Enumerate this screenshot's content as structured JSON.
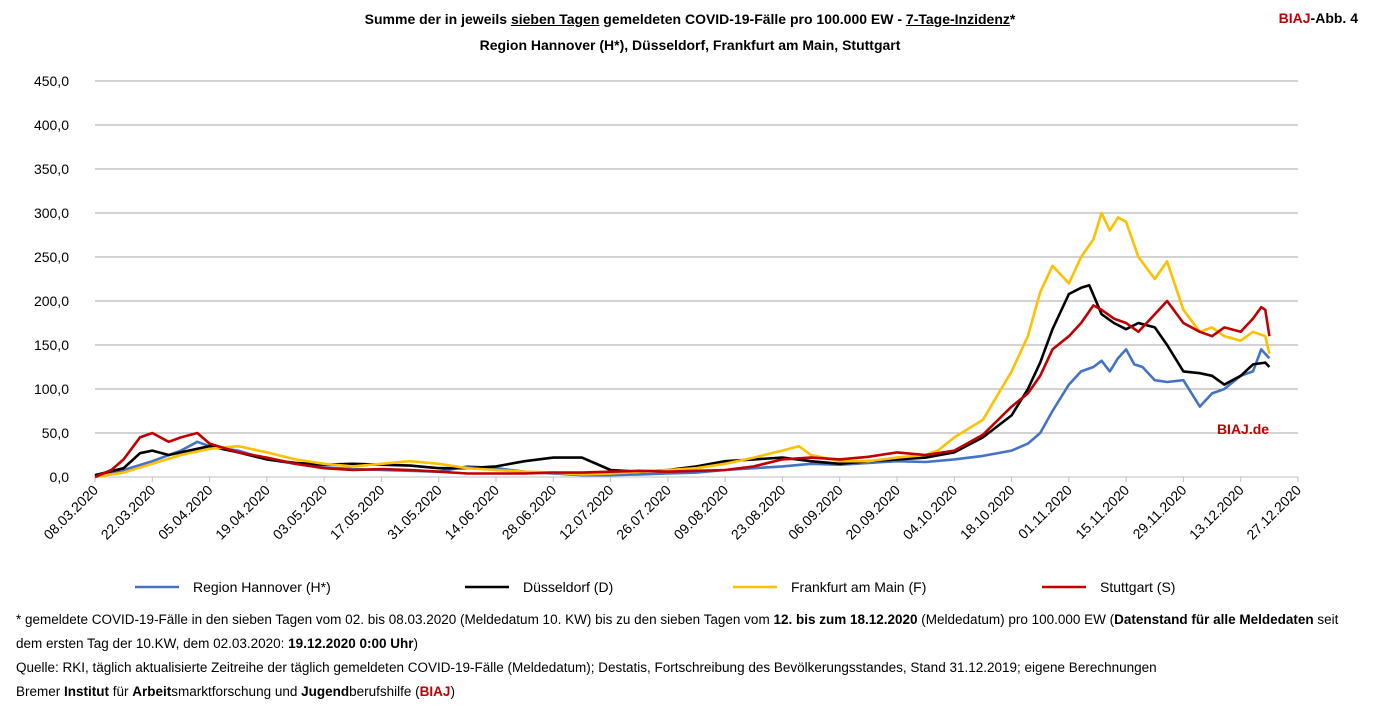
{
  "header": {
    "title_line1": {
      "pre": "Summe der in jeweils ",
      "underlined1": "sieben Tagen",
      "mid": " gemeldeten COVID-19-Fälle pro 100.000 EW - ",
      "underlined2": "7-Tage-Inzidenz",
      "post": "*"
    },
    "title_line2": "Region Hannover (H*), Düsseldorf, Frankfurt am Main, Stuttgart",
    "figure_label_brand": "BIAJ",
    "figure_label_rest": "-Abb. 4"
  },
  "watermark": "BIAJ.de",
  "footnotes": {
    "line1_a": "* gemeldete COVID-19-Fälle in den sieben Tagen vom 02. bis 08.03.2020 (Meldedatum 10. KW) bis zu den sieben Tagen vom ",
    "line1_b": "12. bis zum 18.12.2020",
    "line1_c": " (Meldedatum) pro 100.000 EW (",
    "line1_d": "Datenstand für alle Meldedaten",
    "line1_e": " seit dem ersten Tag der 10.KW, dem 02.03.2020: ",
    "line1_f": "19.12.2020 0:00 Uhr",
    "line1_g": ")",
    "source": "Quelle: RKI, täglich aktualisierte Zeitreihe der täglich gemeldeten COVID-19-Fälle (Meldedatum); Destatis, Fortschreibung des Bevölkerungsstandes, Stand 31.12.2019; eigene Berechnungen",
    "credit_1": "Bremer ",
    "credit_2": "Institut",
    "credit_3": " für ",
    "credit_4": "Arbeit",
    "credit_5": "smarktforschung und ",
    "credit_6": "Jugend",
    "credit_7": "berufshilfe (",
    "credit_8": "BIAJ",
    "credit_9": ")"
  },
  "chart_data": {
    "type": "line",
    "ylim": [
      0,
      450
    ],
    "y_ticks": [
      "0,0",
      "50,0",
      "100,0",
      "150,0",
      "200,0",
      "250,0",
      "300,0",
      "350,0",
      "400,0",
      "450,0"
    ],
    "x_range": [
      "08.03.2020",
      "27.12.2020"
    ],
    "x_ticks": [
      "08.03.2020",
      "22.03.2020",
      "05.04.2020",
      "19.04.2020",
      "03.05.2020",
      "17.05.2020",
      "31.05.2020",
      "14.06.2020",
      "28.06.2020",
      "12.07.2020",
      "26.07.2020",
      "09.08.2020",
      "23.08.2020",
      "06.09.2020",
      "20.09.2020",
      "04.10.2020",
      "18.10.2020",
      "01.11.2020",
      "15.11.2020",
      "29.11.2020",
      "13.12.2020",
      "27.12.2020"
    ],
    "grid": true,
    "legend_position": "bottom",
    "series": [
      {
        "name": "Region Hannover (H*)",
        "color": "#4472c4",
        "points": [
          [
            "08.03.2020",
            1
          ],
          [
            "15.03.2020",
            8
          ],
          [
            "22.03.2020",
            18
          ],
          [
            "29.03.2020",
            30
          ],
          [
            "02.04.2020",
            40
          ],
          [
            "05.04.2020",
            35
          ],
          [
            "12.04.2020",
            30
          ],
          [
            "19.04.2020",
            20
          ],
          [
            "26.04.2020",
            15
          ],
          [
            "03.05.2020",
            11
          ],
          [
            "10.05.2020",
            9
          ],
          [
            "17.05.2020",
            8
          ],
          [
            "24.05.2020",
            7
          ],
          [
            "31.05.2020",
            6
          ],
          [
            "07.06.2020",
            12
          ],
          [
            "14.06.2020",
            10
          ],
          [
            "21.06.2020",
            6
          ],
          [
            "28.06.2020",
            4
          ],
          [
            "05.07.2020",
            2
          ],
          [
            "12.07.2020",
            2
          ],
          [
            "19.07.2020",
            3
          ],
          [
            "26.07.2020",
            4
          ],
          [
            "02.08.2020",
            5
          ],
          [
            "09.08.2020",
            8
          ],
          [
            "16.08.2020",
            10
          ],
          [
            "23.08.2020",
            12
          ],
          [
            "30.08.2020",
            15
          ],
          [
            "06.09.2020",
            14
          ],
          [
            "13.09.2020",
            16
          ],
          [
            "20.09.2020",
            18
          ],
          [
            "27.09.2020",
            17
          ],
          [
            "04.10.2020",
            20
          ],
          [
            "11.10.2020",
            24
          ],
          [
            "18.10.2020",
            30
          ],
          [
            "22.10.2020",
            38
          ],
          [
            "25.10.2020",
            50
          ],
          [
            "28.10.2020",
            75
          ],
          [
            "01.11.2020",
            105
          ],
          [
            "04.11.2020",
            120
          ],
          [
            "07.11.2020",
            125
          ],
          [
            "09.11.2020",
            132
          ],
          [
            "11.11.2020",
            120
          ],
          [
            "13.11.2020",
            135
          ],
          [
            "15.11.2020",
            145
          ],
          [
            "17.11.2020",
            128
          ],
          [
            "19.11.2020",
            125
          ],
          [
            "22.11.2020",
            110
          ],
          [
            "25.11.2020",
            108
          ],
          [
            "29.11.2020",
            110
          ],
          [
            "03.12.2020",
            80
          ],
          [
            "06.12.2020",
            95
          ],
          [
            "09.12.2020",
            100
          ],
          [
            "13.12.2020",
            115
          ],
          [
            "16.12.2020",
            120
          ],
          [
            "18.12.2020",
            145
          ],
          [
            "20.12.2020",
            135
          ]
        ]
      },
      {
        "name": "Düsseldorf (D)",
        "color": "#000000",
        "points": [
          [
            "08.03.2020",
            2
          ],
          [
            "15.03.2020",
            10
          ],
          [
            "19.03.2020",
            27
          ],
          [
            "22.03.2020",
            30
          ],
          [
            "26.03.2020",
            25
          ],
          [
            "02.04.2020",
            32
          ],
          [
            "05.04.2020",
            35
          ],
          [
            "12.04.2020",
            28
          ],
          [
            "19.04.2020",
            20
          ],
          [
            "26.04.2020",
            16
          ],
          [
            "03.05.2020",
            14
          ],
          [
            "10.05.2020",
            15
          ],
          [
            "17.05.2020",
            14
          ],
          [
            "24.05.2020",
            13
          ],
          [
            "31.05.2020",
            10
          ],
          [
            "07.06.2020",
            10
          ],
          [
            "14.06.2020",
            12
          ],
          [
            "21.06.2020",
            18
          ],
          [
            "28.06.2020",
            22
          ],
          [
            "05.07.2020",
            22
          ],
          [
            "12.07.2020",
            8
          ],
          [
            "19.07.2020",
            6
          ],
          [
            "26.07.2020",
            8
          ],
          [
            "02.08.2020",
            12
          ],
          [
            "09.08.2020",
            18
          ],
          [
            "16.08.2020",
            20
          ],
          [
            "23.08.2020",
            22
          ],
          [
            "30.08.2020",
            18
          ],
          [
            "06.09.2020",
            15
          ],
          [
            "13.09.2020",
            18
          ],
          [
            "20.09.2020",
            20
          ],
          [
            "27.09.2020",
            22
          ],
          [
            "04.10.2020",
            28
          ],
          [
            "11.10.2020",
            45
          ],
          [
            "18.10.2020",
            70
          ],
          [
            "22.10.2020",
            100
          ],
          [
            "25.10.2020",
            130
          ],
          [
            "28.10.2020",
            168
          ],
          [
            "01.11.2020",
            208
          ],
          [
            "04.11.2020",
            215
          ],
          [
            "06.11.2020",
            218
          ],
          [
            "09.11.2020",
            185
          ],
          [
            "12.11.2020",
            175
          ],
          [
            "15.11.2020",
            168
          ],
          [
            "18.11.2020",
            175
          ],
          [
            "22.11.2020",
            170
          ],
          [
            "25.11.2020",
            150
          ],
          [
            "29.11.2020",
            120
          ],
          [
            "03.12.2020",
            118
          ],
          [
            "06.12.2020",
            115
          ],
          [
            "09.12.2020",
            105
          ],
          [
            "13.12.2020",
            115
          ],
          [
            "16.12.2020",
            128
          ],
          [
            "19.12.2020",
            130
          ],
          [
            "20.12.2020",
            125
          ]
        ]
      },
      {
        "name": "Frankfurt am Main (F)",
        "color": "#ffc000",
        "points": [
          [
            "08.03.2020",
            0
          ],
          [
            "15.03.2020",
            5
          ],
          [
            "22.03.2020",
            15
          ],
          [
            "29.03.2020",
            25
          ],
          [
            "05.04.2020",
            32
          ],
          [
            "12.04.2020",
            35
          ],
          [
            "19.04.2020",
            28
          ],
          [
            "26.04.2020",
            20
          ],
          [
            "03.05.2020",
            15
          ],
          [
            "10.05.2020",
            12
          ],
          [
            "17.05.2020",
            15
          ],
          [
            "24.05.2020",
            18
          ],
          [
            "31.05.2020",
            15
          ],
          [
            "07.06.2020",
            10
          ],
          [
            "14.06.2020",
            8
          ],
          [
            "21.06.2020",
            6
          ],
          [
            "28.06.2020",
            5
          ],
          [
            "05.07.2020",
            3
          ],
          [
            "12.07.2020",
            4
          ],
          [
            "19.07.2020",
            6
          ],
          [
            "26.07.2020",
            8
          ],
          [
            "02.08.2020",
            10
          ],
          [
            "09.08.2020",
            15
          ],
          [
            "16.08.2020",
            22
          ],
          [
            "23.08.2020",
            30
          ],
          [
            "27.08.2020",
            35
          ],
          [
            "30.08.2020",
            25
          ],
          [
            "06.09.2020",
            18
          ],
          [
            "13.09.2020",
            18
          ],
          [
            "20.09.2020",
            22
          ],
          [
            "27.09.2020",
            25
          ],
          [
            "30.09.2020",
            30
          ],
          [
            "04.10.2020",
            45
          ],
          [
            "11.10.2020",
            65
          ],
          [
            "18.10.2020",
            120
          ],
          [
            "22.10.2020",
            160
          ],
          [
            "25.10.2020",
            210
          ],
          [
            "28.10.2020",
            240
          ],
          [
            "01.11.2020",
            220
          ],
          [
            "04.11.2020",
            250
          ],
          [
            "07.11.2020",
            270
          ],
          [
            "09.11.2020",
            300
          ],
          [
            "11.11.2020",
            280
          ],
          [
            "13.11.2020",
            295
          ],
          [
            "15.11.2020",
            290
          ],
          [
            "18.11.2020",
            250
          ],
          [
            "22.11.2020",
            225
          ],
          [
            "25.11.2020",
            245
          ],
          [
            "29.11.2020",
            190
          ],
          [
            "03.12.2020",
            165
          ],
          [
            "06.12.2020",
            170
          ],
          [
            "09.12.2020",
            160
          ],
          [
            "13.12.2020",
            155
          ],
          [
            "16.12.2020",
            165
          ],
          [
            "19.12.2020",
            160
          ],
          [
            "20.12.2020",
            140
          ]
        ]
      },
      {
        "name": "Stuttgart (S)",
        "color": "#c00000",
        "points": [
          [
            "08.03.2020",
            0
          ],
          [
            "12.03.2020",
            8
          ],
          [
            "15.03.2020",
            20
          ],
          [
            "19.03.2020",
            45
          ],
          [
            "22.03.2020",
            50
          ],
          [
            "26.03.2020",
            40
          ],
          [
            "29.03.2020",
            45
          ],
          [
            "02.04.2020",
            50
          ],
          [
            "05.04.2020",
            38
          ],
          [
            "12.04.2020",
            28
          ],
          [
            "19.04.2020",
            22
          ],
          [
            "26.04.2020",
            15
          ],
          [
            "03.05.2020",
            10
          ],
          [
            "10.05.2020",
            8
          ],
          [
            "17.05.2020",
            9
          ],
          [
            "24.05.2020",
            8
          ],
          [
            "31.05.2020",
            6
          ],
          [
            "07.06.2020",
            4
          ],
          [
            "14.06.2020",
            4
          ],
          [
            "21.06.2020",
            4
          ],
          [
            "28.06.2020",
            5
          ],
          [
            "05.07.2020",
            5
          ],
          [
            "12.07.2020",
            6
          ],
          [
            "19.07.2020",
            7
          ],
          [
            "26.07.2020",
            6
          ],
          [
            "02.08.2020",
            7
          ],
          [
            "09.08.2020",
            8
          ],
          [
            "16.08.2020",
            12
          ],
          [
            "23.08.2020",
            20
          ],
          [
            "30.08.2020",
            22
          ],
          [
            "06.09.2020",
            20
          ],
          [
            "13.09.2020",
            23
          ],
          [
            "20.09.2020",
            28
          ],
          [
            "27.09.2020",
            25
          ],
          [
            "04.10.2020",
            30
          ],
          [
            "11.10.2020",
            48
          ],
          [
            "18.10.2020",
            80
          ],
          [
            "22.10.2020",
            95
          ],
          [
            "25.10.2020",
            115
          ],
          [
            "28.10.2020",
            145
          ],
          [
            "01.11.2020",
            160
          ],
          [
            "04.11.2020",
            175
          ],
          [
            "07.11.2020",
            195
          ],
          [
            "09.11.2020",
            190
          ],
          [
            "12.11.2020",
            180
          ],
          [
            "15.11.2020",
            175
          ],
          [
            "18.11.2020",
            165
          ],
          [
            "22.11.2020",
            185
          ],
          [
            "25.11.2020",
            200
          ],
          [
            "29.11.2020",
            175
          ],
          [
            "03.12.2020",
            165
          ],
          [
            "06.12.2020",
            160
          ],
          [
            "09.12.2020",
            170
          ],
          [
            "13.12.2020",
            165
          ],
          [
            "16.12.2020",
            180
          ],
          [
            "18.12.2020",
            193
          ],
          [
            "19.12.2020",
            190
          ],
          [
            "20.12.2020",
            160
          ]
        ]
      }
    ]
  }
}
